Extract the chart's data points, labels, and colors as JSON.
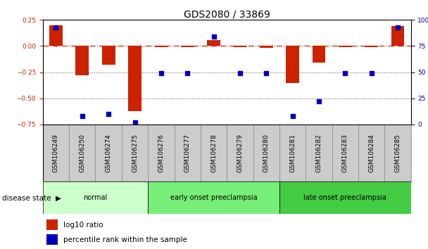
{
  "title": "GDS2080 / 33869",
  "samples": [
    "GSM106249",
    "GSM106250",
    "GSM106274",
    "GSM106275",
    "GSM106276",
    "GSM106277",
    "GSM106278",
    "GSM106279",
    "GSM106280",
    "GSM106281",
    "GSM106282",
    "GSM106283",
    "GSM106284",
    "GSM106285"
  ],
  "log10_ratio": [
    0.2,
    -0.28,
    -0.18,
    -0.62,
    -0.01,
    -0.01,
    0.06,
    -0.01,
    -0.02,
    -0.35,
    -0.16,
    -0.01,
    -0.01,
    0.19
  ],
  "percentile_rank": [
    93,
    8,
    10,
    2,
    49,
    49,
    84,
    49,
    49,
    8,
    22,
    49,
    49,
    93
  ],
  "ylim_left": [
    -0.75,
    0.25
  ],
  "ylim_right": [
    0,
    100
  ],
  "yticks_left": [
    -0.75,
    -0.5,
    -0.25,
    0.0,
    0.25
  ],
  "yticks_right": [
    0,
    25,
    50,
    75,
    100
  ],
  "groups": [
    {
      "label": "normal",
      "start": 0,
      "end": 3,
      "color": "#ccffcc"
    },
    {
      "label": "early onset preeclampsia",
      "start": 4,
      "end": 8,
      "color": "#77ee77"
    },
    {
      "label": "late onset preeclampsia",
      "start": 9,
      "end": 13,
      "color": "#44cc44"
    }
  ],
  "bar_color_red": "#cc2200",
  "dot_color_blue": "#0000bb",
  "hline_color": "#cc2200",
  "dotted_line_color": "#555555",
  "bar_width": 0.5,
  "dot_size": 18,
  "legend_red_label": "log10 ratio",
  "legend_blue_label": "percentile rank within the sample",
  "disease_state_label": "disease state",
  "background_color": "#ffffff",
  "tick_label_fontsize": 6.5,
  "title_fontsize": 10,
  "sample_box_color": "#cccccc",
  "sample_box_edgecolor": "#888888"
}
